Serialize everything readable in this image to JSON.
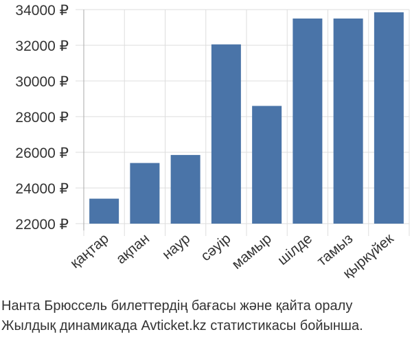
{
  "chart_data": {
    "type": "bar",
    "title": "",
    "xlabel": "",
    "ylabel": "",
    "categories": [
      "қаңтар",
      "ақпан",
      "наур",
      "сәуір",
      "мамыр",
      "шілде",
      "тамыз",
      "қыркүйек"
    ],
    "values": [
      23400,
      25400,
      25850,
      32050,
      28600,
      33500,
      33500,
      33850
    ],
    "ylim": [
      22000,
      34000
    ],
    "yticks": [
      22000,
      24000,
      26000,
      28000,
      30000,
      32000,
      34000
    ],
    "ytick_labels": [
      "22000 ₽",
      "24000 ₽",
      "26000 ₽",
      "28000 ₽",
      "30000 ₽",
      "32000 ₽",
      "34000 ₽"
    ],
    "bar_color": "#4a74a8",
    "grid": true,
    "grid_color": "#dddddd",
    "axis_color": "#aaaaaa"
  },
  "caption": {
    "line1": "Нанта Брюссель билеттердің бағасы және қайта оралу",
    "line2": "Жылдық динамикада Avticket.kz статистикасы бойынша."
  }
}
